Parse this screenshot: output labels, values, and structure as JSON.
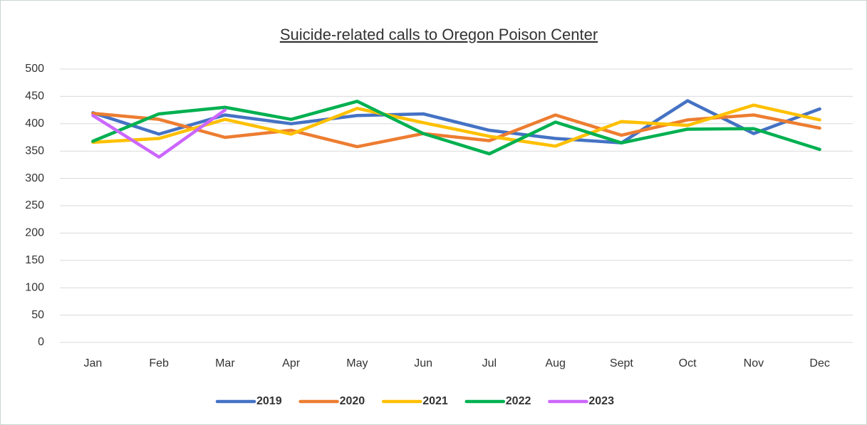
{
  "chart_data": {
    "type": "line",
    "title": "Suicide-related calls to Oregon Poison Center",
    "categories": [
      "Jan",
      "Feb",
      "Mar",
      "Apr",
      "May",
      "Jun",
      "Jul",
      "Aug",
      "Sept",
      "Oct",
      "Nov",
      "Dec"
    ],
    "series": [
      {
        "name": "2019",
        "color": "#4472c4",
        "values": [
          420,
          381,
          416,
          400,
          415,
          418,
          388,
          373,
          365,
          442,
          382,
          427
        ]
      },
      {
        "name": "2020",
        "color": "#ed7d31",
        "values": [
          419,
          408,
          375,
          388,
          358,
          382,
          369,
          416,
          379,
          407,
          416,
          392
        ]
      },
      {
        "name": "2021",
        "color": "#ffc000",
        "values": [
          366,
          373,
          408,
          381,
          428,
          402,
          377,
          359,
          404,
          397,
          434,
          407
        ]
      },
      {
        "name": "2022",
        "color": "#00b050",
        "values": [
          368,
          418,
          430,
          408,
          441,
          382,
          345,
          403,
          365,
          390,
          391,
          353
        ]
      },
      {
        "name": "2023",
        "color": "#cc66ff",
        "values": [
          415,
          339,
          425,
          null,
          null,
          null,
          null,
          null,
          null,
          null,
          null,
          null
        ]
      }
    ],
    "ylim": [
      0,
      500
    ],
    "yticks": [
      0,
      50,
      100,
      150,
      200,
      250,
      300,
      350,
      400,
      450,
      500
    ],
    "grid": true,
    "legend": "bottom"
  }
}
